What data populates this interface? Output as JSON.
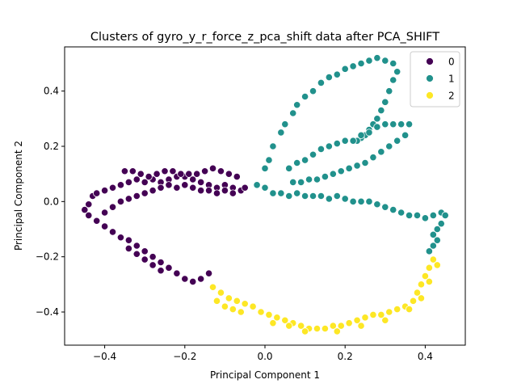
{
  "chart_data": {
    "type": "scatter",
    "title": "Clusters of gyro_y_r_force_z_pca_shift data after PCA_SHIFT",
    "xlabel": "Principal Component 1",
    "ylabel": "Principal Component 2",
    "xlim": [
      -0.5,
      0.5
    ],
    "ylim": [
      -0.52,
      0.56
    ],
    "xticks": [
      -0.4,
      -0.2,
      0.0,
      0.2,
      0.4
    ],
    "xtick_labels": [
      "−0.4",
      "−0.2",
      "0.0",
      "0.2",
      "0.4"
    ],
    "yticks": [
      -0.4,
      -0.2,
      0.0,
      0.2,
      0.4
    ],
    "ytick_labels": [
      "−0.4",
      "−0.2",
      "0.0",
      "0.2",
      "0.4"
    ],
    "grid": false,
    "legend": {
      "placement": "top-right"
    },
    "series": [
      {
        "name": "0",
        "color": "#440154",
        "points": [
          [
            -0.45,
            -0.03
          ],
          [
            -0.44,
            -0.01
          ],
          [
            -0.43,
            0.02
          ],
          [
            -0.42,
            0.03
          ],
          [
            -0.4,
            0.04
          ],
          [
            -0.38,
            0.05
          ],
          [
            -0.36,
            0.06
          ],
          [
            -0.34,
            0.07
          ],
          [
            -0.32,
            0.08
          ],
          [
            -0.3,
            0.07
          ],
          [
            -0.28,
            0.08
          ],
          [
            -0.26,
            0.07
          ],
          [
            -0.24,
            0.08
          ],
          [
            -0.22,
            0.09
          ],
          [
            -0.2,
            0.09
          ],
          [
            -0.18,
            0.08
          ],
          [
            -0.16,
            0.07
          ],
          [
            -0.14,
            0.06
          ],
          [
            -0.12,
            0.05
          ],
          [
            -0.1,
            0.06
          ],
          [
            -0.08,
            0.05
          ],
          [
            -0.35,
            0.11
          ],
          [
            -0.33,
            0.11
          ],
          [
            -0.31,
            0.1
          ],
          [
            -0.29,
            0.09
          ],
          [
            -0.27,
            0.1
          ],
          [
            -0.25,
            0.11
          ],
          [
            -0.23,
            0.11
          ],
          [
            -0.21,
            0.1
          ],
          [
            -0.19,
            0.1
          ],
          [
            -0.17,
            0.1
          ],
          [
            -0.15,
            0.11
          ],
          [
            -0.13,
            0.12
          ],
          [
            -0.11,
            0.11
          ],
          [
            -0.09,
            0.1
          ],
          [
            -0.07,
            0.09
          ],
          [
            -0.4,
            -0.04
          ],
          [
            -0.38,
            -0.02
          ],
          [
            -0.36,
            0.0
          ],
          [
            -0.34,
            0.01
          ],
          [
            -0.32,
            0.02
          ],
          [
            -0.3,
            0.03
          ],
          [
            -0.28,
            0.04
          ],
          [
            -0.26,
            0.05
          ],
          [
            -0.24,
            0.06
          ],
          [
            -0.22,
            0.05
          ],
          [
            -0.2,
            0.06
          ],
          [
            -0.18,
            0.05
          ],
          [
            -0.16,
            0.04
          ],
          [
            -0.14,
            0.04
          ],
          [
            -0.12,
            0.03
          ],
          [
            -0.1,
            0.04
          ],
          [
            -0.08,
            0.03
          ],
          [
            -0.06,
            0.04
          ],
          [
            -0.05,
            0.05
          ],
          [
            -0.44,
            -0.05
          ],
          [
            -0.42,
            -0.07
          ],
          [
            -0.4,
            -0.09
          ],
          [
            -0.38,
            -0.11
          ],
          [
            -0.36,
            -0.13
          ],
          [
            -0.34,
            -0.14
          ],
          [
            -0.32,
            -0.16
          ],
          [
            -0.3,
            -0.18
          ],
          [
            -0.28,
            -0.2
          ],
          [
            -0.26,
            -0.22
          ],
          [
            -0.24,
            -0.24
          ],
          [
            -0.22,
            -0.26
          ],
          [
            -0.2,
            -0.28
          ],
          [
            -0.18,
            -0.29
          ],
          [
            -0.16,
            -0.28
          ],
          [
            -0.14,
            -0.26
          ],
          [
            -0.34,
            -0.17
          ],
          [
            -0.32,
            -0.19
          ],
          [
            -0.3,
            -0.21
          ],
          [
            -0.28,
            -0.23
          ],
          [
            -0.26,
            -0.25
          ]
        ]
      },
      {
        "name": "1",
        "color": "#21918c",
        "points": [
          [
            -0.02,
            0.06
          ],
          [
            0.0,
            0.05
          ],
          [
            0.02,
            0.03
          ],
          [
            0.04,
            0.03
          ],
          [
            0.06,
            0.02
          ],
          [
            0.08,
            0.03
          ],
          [
            0.1,
            0.02
          ],
          [
            0.12,
            0.02
          ],
          [
            0.14,
            0.02
          ],
          [
            0.16,
            0.01
          ],
          [
            0.18,
            0.02
          ],
          [
            0.2,
            0.01
          ],
          [
            0.22,
            0.0
          ],
          [
            0.24,
            0.0
          ],
          [
            0.26,
            0.0
          ],
          [
            0.28,
            -0.01
          ],
          [
            0.3,
            -0.02
          ],
          [
            0.32,
            -0.03
          ],
          [
            0.34,
            -0.04
          ],
          [
            0.36,
            -0.05
          ],
          [
            0.38,
            -0.05
          ],
          [
            0.4,
            -0.06
          ],
          [
            0.42,
            -0.05
          ],
          [
            0.44,
            -0.04
          ],
          [
            0.45,
            -0.05
          ],
          [
            0.44,
            -0.08
          ],
          [
            0.43,
            -0.1
          ],
          [
            0.42,
            -0.12
          ],
          [
            0.43,
            -0.14
          ],
          [
            0.42,
            -0.16
          ],
          [
            0.41,
            -0.18
          ],
          [
            0.0,
            0.12
          ],
          [
            0.01,
            0.15
          ],
          [
            0.02,
            0.2
          ],
          [
            0.04,
            0.25
          ],
          [
            0.05,
            0.28
          ],
          [
            0.07,
            0.32
          ],
          [
            0.08,
            0.35
          ],
          [
            0.1,
            0.38
          ],
          [
            0.12,
            0.4
          ],
          [
            0.14,
            0.43
          ],
          [
            0.16,
            0.45
          ],
          [
            0.18,
            0.46
          ],
          [
            0.2,
            0.48
          ],
          [
            0.22,
            0.49
          ],
          [
            0.24,
            0.5
          ],
          [
            0.26,
            0.51
          ],
          [
            0.28,
            0.52
          ],
          [
            0.3,
            0.51
          ],
          [
            0.32,
            0.5
          ],
          [
            0.33,
            0.47
          ],
          [
            0.32,
            0.44
          ],
          [
            0.31,
            0.4
          ],
          [
            0.3,
            0.36
          ],
          [
            0.29,
            0.33
          ],
          [
            0.28,
            0.3
          ],
          [
            0.27,
            0.28
          ],
          [
            0.26,
            0.26
          ],
          [
            0.25,
            0.24
          ],
          [
            0.24,
            0.23
          ],
          [
            0.23,
            0.22
          ],
          [
            0.06,
            0.12
          ],
          [
            0.08,
            0.14
          ],
          [
            0.1,
            0.15
          ],
          [
            0.12,
            0.17
          ],
          [
            0.14,
            0.19
          ],
          [
            0.16,
            0.2
          ],
          [
            0.18,
            0.21
          ],
          [
            0.2,
            0.22
          ],
          [
            0.22,
            0.22
          ],
          [
            0.24,
            0.24
          ],
          [
            0.26,
            0.25
          ],
          [
            0.28,
            0.27
          ],
          [
            0.3,
            0.28
          ],
          [
            0.32,
            0.28
          ],
          [
            0.34,
            0.28
          ],
          [
            0.36,
            0.28
          ],
          [
            0.35,
            0.24
          ],
          [
            0.33,
            0.22
          ],
          [
            0.31,
            0.2
          ],
          [
            0.29,
            0.18
          ],
          [
            0.27,
            0.16
          ],
          [
            0.25,
            0.14
          ],
          [
            0.23,
            0.13
          ],
          [
            0.21,
            0.12
          ],
          [
            0.19,
            0.11
          ],
          [
            0.17,
            0.1
          ],
          [
            0.15,
            0.09
          ],
          [
            0.13,
            0.08
          ],
          [
            0.11,
            0.08
          ],
          [
            0.09,
            0.07
          ],
          [
            0.07,
            0.07
          ]
        ]
      },
      {
        "name": "2",
        "color": "#fde725",
        "points": [
          [
            -0.13,
            -0.31
          ],
          [
            -0.11,
            -0.33
          ],
          [
            -0.09,
            -0.35
          ],
          [
            -0.07,
            -0.36
          ],
          [
            -0.05,
            -0.37
          ],
          [
            -0.03,
            -0.38
          ],
          [
            -0.01,
            -0.4
          ],
          [
            0.01,
            -0.41
          ],
          [
            0.03,
            -0.42
          ],
          [
            0.05,
            -0.43
          ],
          [
            0.07,
            -0.44
          ],
          [
            0.09,
            -0.45
          ],
          [
            0.11,
            -0.46
          ],
          [
            0.13,
            -0.46
          ],
          [
            0.15,
            -0.46
          ],
          [
            0.17,
            -0.45
          ],
          [
            0.19,
            -0.45
          ],
          [
            0.21,
            -0.44
          ],
          [
            0.23,
            -0.43
          ],
          [
            0.25,
            -0.42
          ],
          [
            0.27,
            -0.41
          ],
          [
            0.29,
            -0.41
          ],
          [
            0.31,
            -0.4
          ],
          [
            0.33,
            -0.39
          ],
          [
            0.35,
            -0.38
          ],
          [
            0.37,
            -0.36
          ],
          [
            0.38,
            -0.33
          ],
          [
            0.39,
            -0.3
          ],
          [
            0.4,
            -0.27
          ],
          [
            0.41,
            -0.24
          ],
          [
            0.42,
            -0.21
          ],
          [
            -0.12,
            -0.36
          ],
          [
            -0.1,
            -0.38
          ],
          [
            -0.08,
            -0.39
          ],
          [
            -0.06,
            -0.4
          ],
          [
            0.02,
            -0.44
          ],
          [
            0.06,
            -0.45
          ],
          [
            0.1,
            -0.47
          ],
          [
            0.18,
            -0.47
          ],
          [
            0.24,
            -0.45
          ],
          [
            0.3,
            -0.43
          ],
          [
            0.36,
            -0.39
          ],
          [
            0.39,
            -0.35
          ],
          [
            0.41,
            -0.29
          ],
          [
            0.43,
            -0.23
          ]
        ]
      }
    ]
  }
}
